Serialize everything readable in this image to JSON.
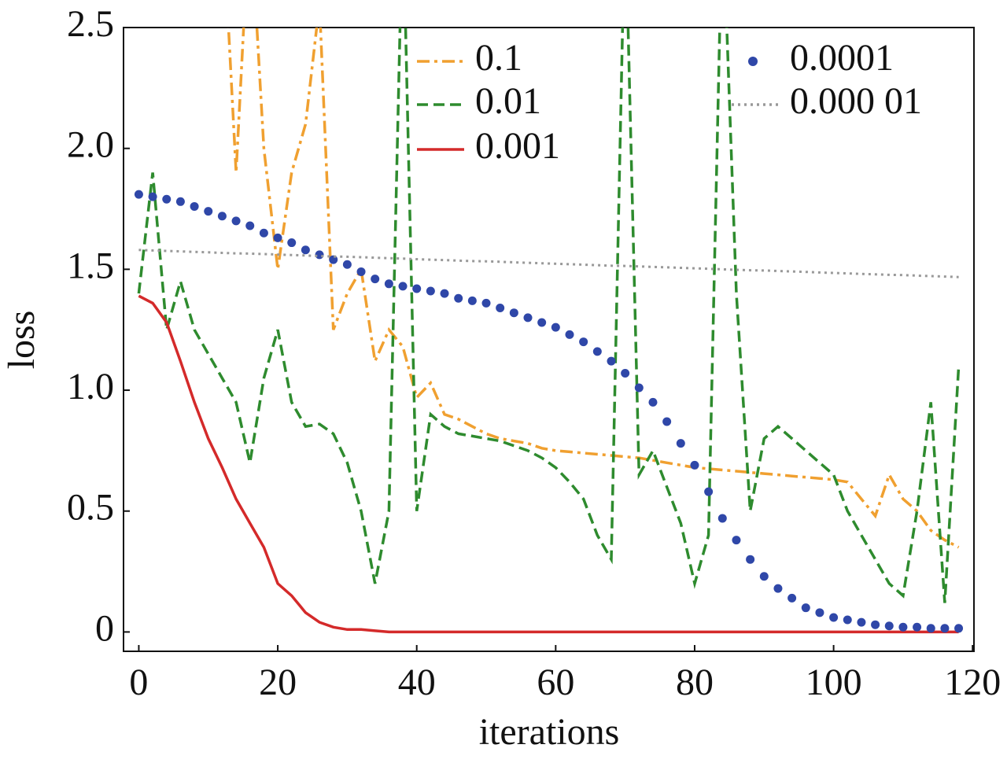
{
  "chart_data": {
    "type": "line",
    "xlabel": "iterations",
    "ylabel": "loss",
    "xlim": [
      -2.2,
      120.2
    ],
    "ylim": [
      -0.08,
      2.5
    ],
    "xticks": [
      0,
      20,
      40,
      60,
      80,
      100,
      120
    ],
    "yticks": [
      0,
      0.5,
      {
        "value": 1,
        "label": "1.0"
      },
      1.5,
      {
        "value": 2,
        "label": "2.0"
      },
      2.5
    ],
    "x": [
      0,
      2,
      4,
      6,
      8,
      10,
      12,
      14,
      16,
      18,
      20,
      22,
      24,
      26,
      28,
      30,
      32,
      34,
      36,
      38,
      40,
      42,
      44,
      46,
      48,
      50,
      52,
      54,
      56,
      58,
      60,
      62,
      64,
      66,
      68,
      70,
      72,
      74,
      76,
      78,
      80,
      82,
      84,
      86,
      88,
      90,
      92,
      94,
      96,
      98,
      100,
      102,
      104,
      106,
      108,
      110,
      112,
      114,
      116,
      118
    ],
    "series": [
      {
        "name": "0.1",
        "color": "#f0a030",
        "style": "dashdot",
        "values": [
          null,
          null,
          null,
          null,
          null,
          null,
          3.0,
          1.9,
          3.0,
          2.0,
          1.5,
          1.9,
          2.1,
          2.6,
          1.25,
          1.4,
          1.5,
          1.12,
          1.25,
          1.18,
          0.97,
          1.03,
          0.9,
          0.88,
          0.85,
          0.82,
          0.8,
          0.79,
          0.78,
          0.76,
          0.75,
          0.745,
          0.74,
          0.735,
          0.73,
          0.725,
          0.72,
          0.71,
          0.7,
          0.69,
          0.68,
          0.675,
          0.67,
          0.665,
          0.66,
          0.655,
          0.65,
          0.645,
          0.64,
          0.635,
          0.63,
          0.62,
          0.55,
          0.48,
          0.65,
          0.55,
          0.5,
          0.42,
          0.38,
          0.35
        ]
      },
      {
        "name": "0.01",
        "color": "#2e8b2e",
        "style": "dashed",
        "values": [
          1.4,
          1.9,
          1.25,
          1.45,
          1.25,
          1.15,
          1.05,
          0.95,
          0.7,
          1.05,
          1.25,
          0.95,
          0.85,
          0.86,
          0.82,
          0.7,
          0.5,
          0.2,
          0.5,
          3.0,
          0.5,
          0.9,
          0.85,
          0.82,
          0.81,
          0.8,
          0.79,
          0.77,
          0.75,
          0.72,
          0.68,
          0.62,
          0.55,
          0.4,
          0.3,
          3.0,
          0.65,
          0.75,
          0.6,
          0.45,
          0.2,
          0.4,
          3.0,
          1.4,
          0.5,
          0.8,
          0.85,
          0.8,
          0.75,
          0.7,
          0.65,
          0.5,
          0.4,
          0.3,
          0.2,
          0.15,
          0.5,
          0.95,
          0.12,
          1.1
        ]
      },
      {
        "name": "0.001",
        "color": "#d42a2a",
        "style": "solid",
        "values": [
          1.39,
          1.36,
          1.28,
          1.12,
          0.95,
          0.8,
          0.68,
          0.55,
          0.45,
          0.35,
          0.2,
          0.15,
          0.08,
          0.04,
          0.02,
          0.01,
          0.01,
          0.005,
          0,
          0,
          0,
          0,
          0,
          0,
          0,
          0,
          0,
          0,
          0,
          0,
          0,
          0,
          0,
          0,
          0,
          0,
          0,
          0,
          0,
          0,
          0,
          0,
          0,
          0,
          0,
          0,
          0,
          0,
          0,
          0,
          0,
          0,
          0,
          0,
          0,
          0,
          0,
          0,
          0,
          0
        ]
      },
      {
        "name": "0.0001",
        "color": "#2f47a8",
        "style": "markers",
        "values": [
          1.81,
          1.8,
          1.79,
          1.78,
          1.76,
          1.74,
          1.72,
          1.7,
          1.68,
          1.65,
          1.63,
          1.61,
          1.58,
          1.56,
          1.54,
          1.52,
          1.49,
          1.46,
          1.44,
          1.43,
          1.42,
          1.41,
          1.4,
          1.38,
          1.37,
          1.36,
          1.34,
          1.32,
          1.3,
          1.28,
          1.26,
          1.23,
          1.2,
          1.16,
          1.12,
          1.07,
          1.01,
          0.95,
          0.87,
          0.78,
          0.69,
          0.58,
          0.47,
          0.38,
          0.3,
          0.23,
          0.18,
          0.14,
          0.1,
          0.08,
          0.06,
          0.05,
          0.04,
          0.03,
          0.025,
          0.02,
          0.02,
          0.015,
          0.015,
          0.015
        ]
      },
      {
        "name": "0.000 01",
        "color": "#999999",
        "style": "dotted",
        "values": [
          1.58,
          1.578,
          1.576,
          1.574,
          1.572,
          1.57,
          1.568,
          1.566,
          1.565,
          1.563,
          1.561,
          1.559,
          1.557,
          1.555,
          1.553,
          1.552,
          1.55,
          1.548,
          1.546,
          1.544,
          1.542,
          1.54,
          1.538,
          1.536,
          1.534,
          1.533,
          1.531,
          1.529,
          1.527,
          1.525,
          1.523,
          1.521,
          1.519,
          1.517,
          1.515,
          1.514,
          1.512,
          1.51,
          1.508,
          1.506,
          1.504,
          1.502,
          1.5,
          1.498,
          1.496,
          1.495,
          1.493,
          1.491,
          1.489,
          1.487,
          1.485,
          1.483,
          1.481,
          1.479,
          1.477,
          1.476,
          1.474,
          1.472,
          1.47,
          1.468
        ]
      }
    ]
  }
}
